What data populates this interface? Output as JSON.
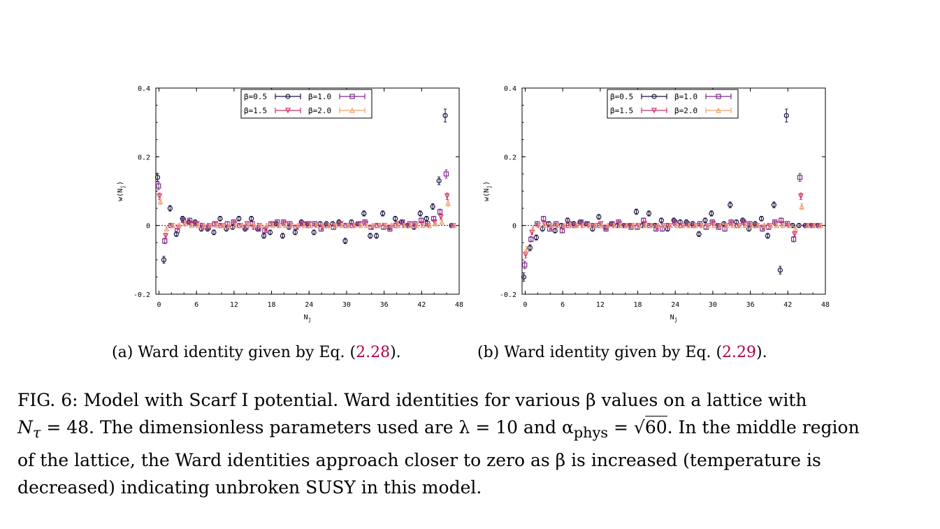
{
  "subcaptions": {
    "a_text": "(a) Ward identity given by Eq. (",
    "a_ref": "2.28",
    "a_end": ").",
    "b_text": "(b) Ward identity given by Eq. (",
    "b_ref": "2.29",
    "b_end": ")."
  },
  "caption": {
    "line1": "FIG. 6: Model with Scarf I potential. Ward identities for various β values on a lattice with",
    "line2_a": "N",
    "line2_sub": "τ",
    "line2_b": " = 48. The dimensionless parameters used are λ = 10 and α",
    "line2_sub2": "phys",
    "line2_c": " = √",
    "line2_sqrt": "60",
    "line2_d": ". In the middle region",
    "line3": "of the lattice, the Ward identities approach closer to zero as β is increased (temperature is",
    "line4": "decreased) indicating unbroken SUSY in this model."
  },
  "colors": {
    "beta0_5": "#1a1040",
    "beta1_0": "#7a2a8a",
    "beta1_5": "#d0306a",
    "beta2_0": "#f0a070"
  },
  "chart_data": [
    {
      "type": "scatter",
      "panel": "a",
      "xlabel": "N_j",
      "ylabel": "w(N_j)",
      "xlim": [
        -0.5,
        48
      ],
      "ylim": [
        -0.2,
        0.4
      ],
      "xticks": [
        "0",
        "6",
        "12",
        "18",
        "24",
        "30",
        "36",
        "42",
        "48"
      ],
      "yticks": [
        "-0.2",
        "0",
        "0.2",
        "0.4"
      ],
      "legend": "top-center",
      "series": [
        {
          "name": "β=0.5",
          "marker": "circle",
          "color": "#1a1040",
          "x": [
            0,
            1,
            2,
            3,
            4,
            5,
            6,
            7,
            8,
            9,
            10,
            11,
            12,
            13,
            14,
            15,
            16,
            17,
            18,
            19,
            20,
            21,
            22,
            23,
            24,
            25,
            26,
            27,
            28,
            29,
            30,
            31,
            32,
            33,
            34,
            35,
            36,
            37,
            38,
            39,
            40,
            41,
            42,
            43,
            44,
            45,
            46,
            47
          ],
          "values": [
            0.14,
            -0.1,
            0.05,
            -0.025,
            0.02,
            0.01,
            0.01,
            -0.01,
            -0.01,
            -0.02,
            0.02,
            -0.01,
            -0.005,
            0.02,
            -0.01,
            0.02,
            -0.01,
            -0.03,
            -0.02,
            0.005,
            -0.03,
            -0.005,
            -0.02,
            0.01,
            0.005,
            -0.02,
            0.005,
            0.005,
            0.005,
            0.01,
            -0.045,
            0.01,
            0.005,
            0.035,
            -0.03,
            -0.03,
            0.035,
            -0.005,
            0.02,
            0.01,
            0.0,
            -0.005,
            0.035,
            0.02,
            0.055,
            0.13,
            0.32,
            0.0
          ]
        },
        {
          "name": "β=1.0",
          "marker": "square",
          "color": "#7a2a8a",
          "x": [
            0,
            1,
            2,
            3,
            4,
            5,
            6,
            7,
            8,
            9,
            10,
            11,
            12,
            13,
            14,
            15,
            16,
            17,
            18,
            19,
            20,
            21,
            22,
            23,
            24,
            25,
            26,
            27,
            28,
            29,
            30,
            31,
            32,
            33,
            34,
            35,
            36,
            37,
            38,
            39,
            40,
            41,
            42,
            43,
            44,
            45,
            46,
            47
          ],
          "values": [
            0.115,
            -0.045,
            0.0,
            -0.015,
            0.015,
            0.015,
            0.005,
            0.0,
            -0.005,
            0.005,
            0.0,
            0.005,
            0.01,
            0.0,
            -0.005,
            0.005,
            -0.01,
            -0.015,
            0.005,
            0.01,
            0.01,
            0.005,
            -0.005,
            0.005,
            0.0,
            0.005,
            -0.01,
            0.0,
            -0.005,
            0.005,
            0.0,
            0.0,
            0.005,
            0.01,
            -0.005,
            0.0,
            -0.005,
            -0.01,
            0.0,
            0.01,
            0.0,
            0.005,
            0.015,
            0.005,
            0.02,
            0.04,
            0.15,
            0.0
          ]
        },
        {
          "name": "β=1.5",
          "marker": "triangle-down",
          "color": "#d0306a",
          "x": [
            0,
            1,
            2,
            3,
            4,
            5,
            6,
            7,
            8,
            9,
            10,
            11,
            12,
            13,
            14,
            15,
            16,
            17,
            18,
            19,
            20,
            21,
            22,
            23,
            24,
            25,
            26,
            27,
            28,
            29,
            30,
            31,
            32,
            33,
            34,
            35,
            36,
            37,
            38,
            39,
            40,
            41,
            42,
            43,
            44,
            45,
            46,
            47
          ],
          "values": [
            0.085,
            -0.03,
            0.0,
            -0.005,
            0.005,
            0.005,
            0.005,
            -0.005,
            0.0,
            0.005,
            0.0,
            -0.005,
            0.005,
            0.0,
            0.005,
            -0.005,
            0.0,
            -0.01,
            0.005,
            0.0,
            0.005,
            0.0,
            -0.005,
            0.005,
            0.005,
            0.0,
            -0.005,
            0.0,
            0.0,
            0.005,
            0.0,
            0.0,
            0.005,
            0.005,
            -0.005,
            0.0,
            0.0,
            -0.005,
            0.005,
            0.0,
            0.005,
            0.0,
            0.005,
            0.0,
            0.01,
            0.025,
            0.085,
            0.0
          ]
        },
        {
          "name": "β=2.0",
          "marker": "triangle-up",
          "color": "#f0a070",
          "x": [
            0,
            1,
            2,
            3,
            4,
            5,
            6,
            7,
            8,
            9,
            10,
            11,
            12,
            13,
            14,
            15,
            16,
            17,
            18,
            19,
            20,
            21,
            22,
            23,
            24,
            25,
            26,
            27,
            28,
            29,
            30,
            31,
            32,
            33,
            34,
            35,
            36,
            37,
            38,
            39,
            40,
            41,
            42,
            43,
            44,
            45,
            46,
            47
          ],
          "values": [
            0.07,
            -0.01,
            0.0,
            0.0,
            0.005,
            0.0,
            0.0,
            0.0,
            0.0,
            0.0,
            0.0,
            0.0,
            0.0,
            0.0,
            0.0,
            0.0,
            0.0,
            0.0,
            0.0,
            0.0,
            0.0,
            0.0,
            0.0,
            0.0,
            0.0,
            0.0,
            0.0,
            0.0,
            0.0,
            0.0,
            0.0,
            0.0,
            0.0,
            0.0,
            0.0,
            0.0,
            0.0,
            0.0,
            0.0,
            0.0,
            0.0,
            0.0,
            0.0,
            0.0,
            0.005,
            0.01,
            0.065,
            0.0
          ]
        }
      ]
    },
    {
      "type": "scatter",
      "panel": "b",
      "xlabel": "N_j",
      "ylabel": "w(N_j)",
      "xlim": [
        -0.5,
        48
      ],
      "ylim": [
        -0.2,
        0.4
      ],
      "xticks": [
        "0",
        "6",
        "12",
        "18",
        "24",
        "30",
        "36",
        "42",
        "48"
      ],
      "yticks": [
        "-0.2",
        "0",
        "0.2",
        "0.4"
      ],
      "legend": "top-center",
      "series": [
        {
          "name": "β=0.5",
          "marker": "circle",
          "color": "#1a1040",
          "x": [
            0,
            1,
            2,
            3,
            4,
            5,
            6,
            7,
            8,
            9,
            10,
            11,
            12,
            13,
            14,
            15,
            16,
            17,
            18,
            19,
            20,
            21,
            22,
            23,
            24,
            25,
            26,
            27,
            28,
            29,
            30,
            31,
            32,
            33,
            34,
            35,
            36,
            37,
            38,
            39,
            40,
            41,
            42,
            43,
            44,
            45,
            46,
            47
          ],
          "values": [
            -0.15,
            -0.065,
            -0.035,
            -0.01,
            0.005,
            -0.015,
            0.0,
            0.015,
            0.005,
            0.01,
            0.005,
            -0.01,
            0.025,
            -0.005,
            0.005,
            0.0,
            0.0,
            0.0,
            0.04,
            0.0,
            0.035,
            0.0,
            0.015,
            -0.01,
            0.015,
            0.01,
            0.01,
            0.005,
            -0.025,
            0.015,
            0.035,
            0.0,
            0.005,
            0.06,
            0.01,
            0.015,
            -0.01,
            0.005,
            0.02,
            -0.03,
            0.06,
            -0.13,
            0.32,
            0.0,
            0.0,
            0.0,
            0.0,
            0.0
          ]
        },
        {
          "name": "β=1.0",
          "marker": "square",
          "color": "#7a2a8a",
          "x": [
            0,
            1,
            2,
            3,
            4,
            5,
            6,
            7,
            8,
            9,
            10,
            11,
            12,
            13,
            14,
            15,
            16,
            17,
            18,
            19,
            20,
            21,
            22,
            23,
            24,
            25,
            26,
            27,
            28,
            29,
            30,
            31,
            32,
            33,
            34,
            35,
            36,
            37,
            38,
            39,
            40,
            41,
            42,
            43,
            44,
            45,
            46,
            47
          ],
          "values": [
            -0.115,
            -0.04,
            0.005,
            0.02,
            -0.01,
            0.005,
            -0.015,
            0.0,
            0.0,
            0.01,
            0.005,
            0.0,
            0.0,
            -0.01,
            0.005,
            0.01,
            0.0,
            -0.005,
            -0.005,
            0.015,
            0.0,
            -0.01,
            -0.01,
            0.0,
            0.01,
            0.0,
            0.005,
            0.0,
            0.005,
            -0.005,
            0.01,
            -0.005,
            -0.01,
            0.01,
            0.0,
            0.01,
            0.005,
            0.0,
            -0.01,
            -0.005,
            0.01,
            0.015,
            0.005,
            -0.04,
            0.14,
            0.0,
            0.0,
            0.0
          ]
        },
        {
          "name": "β=1.5",
          "marker": "triangle-down",
          "color": "#d0306a",
          "x": [
            0,
            1,
            2,
            3,
            4,
            5,
            6,
            7,
            8,
            9,
            10,
            11,
            12,
            13,
            14,
            15,
            16,
            17,
            18,
            19,
            20,
            21,
            22,
            23,
            24,
            25,
            26,
            27,
            28,
            29,
            30,
            31,
            32,
            33,
            34,
            35,
            36,
            37,
            38,
            39,
            40,
            41,
            42,
            43,
            44,
            45,
            46,
            47
          ],
          "values": [
            -0.085,
            -0.02,
            0.0,
            0.005,
            -0.005,
            0.0,
            -0.005,
            0.005,
            0.0,
            0.0,
            0.0,
            0.0,
            0.005,
            -0.005,
            0.0,
            0.005,
            0.0,
            0.0,
            0.0,
            0.005,
            0.0,
            -0.005,
            0.0,
            0.0,
            0.005,
            0.0,
            0.0,
            0.0,
            0.0,
            0.0,
            0.005,
            0.0,
            0.0,
            0.005,
            0.0,
            0.005,
            0.0,
            0.0,
            -0.005,
            0.0,
            0.005,
            0.005,
            0.0,
            -0.025,
            0.085,
            0.0,
            0.0,
            0.0
          ]
        },
        {
          "name": "β=2.0",
          "marker": "triangle-up",
          "color": "#f0a070",
          "x": [
            0,
            1,
            2,
            3,
            4,
            5,
            6,
            7,
            8,
            9,
            10,
            11,
            12,
            13,
            14,
            15,
            16,
            17,
            18,
            19,
            20,
            21,
            22,
            23,
            24,
            25,
            26,
            27,
            28,
            29,
            30,
            31,
            32,
            33,
            34,
            35,
            36,
            37,
            38,
            39,
            40,
            41,
            42,
            43,
            44,
            45,
            46,
            47
          ],
          "values": [
            -0.07,
            -0.01,
            0.0,
            0.0,
            0.0,
            0.0,
            0.0,
            0.0,
            0.0,
            0.0,
            0.0,
            0.0,
            0.0,
            0.0,
            0.0,
            0.0,
            0.0,
            0.0,
            0.0,
            0.0,
            0.0,
            0.0,
            0.0,
            0.0,
            0.0,
            0.0,
            0.0,
            0.0,
            0.0,
            0.0,
            0.0,
            0.0,
            0.0,
            0.0,
            0.0,
            0.0,
            0.0,
            0.0,
            0.0,
            0.0,
            0.0,
            0.0,
            0.0,
            -0.01,
            0.055,
            0.0,
            0.0,
            0.0
          ]
        }
      ]
    }
  ]
}
